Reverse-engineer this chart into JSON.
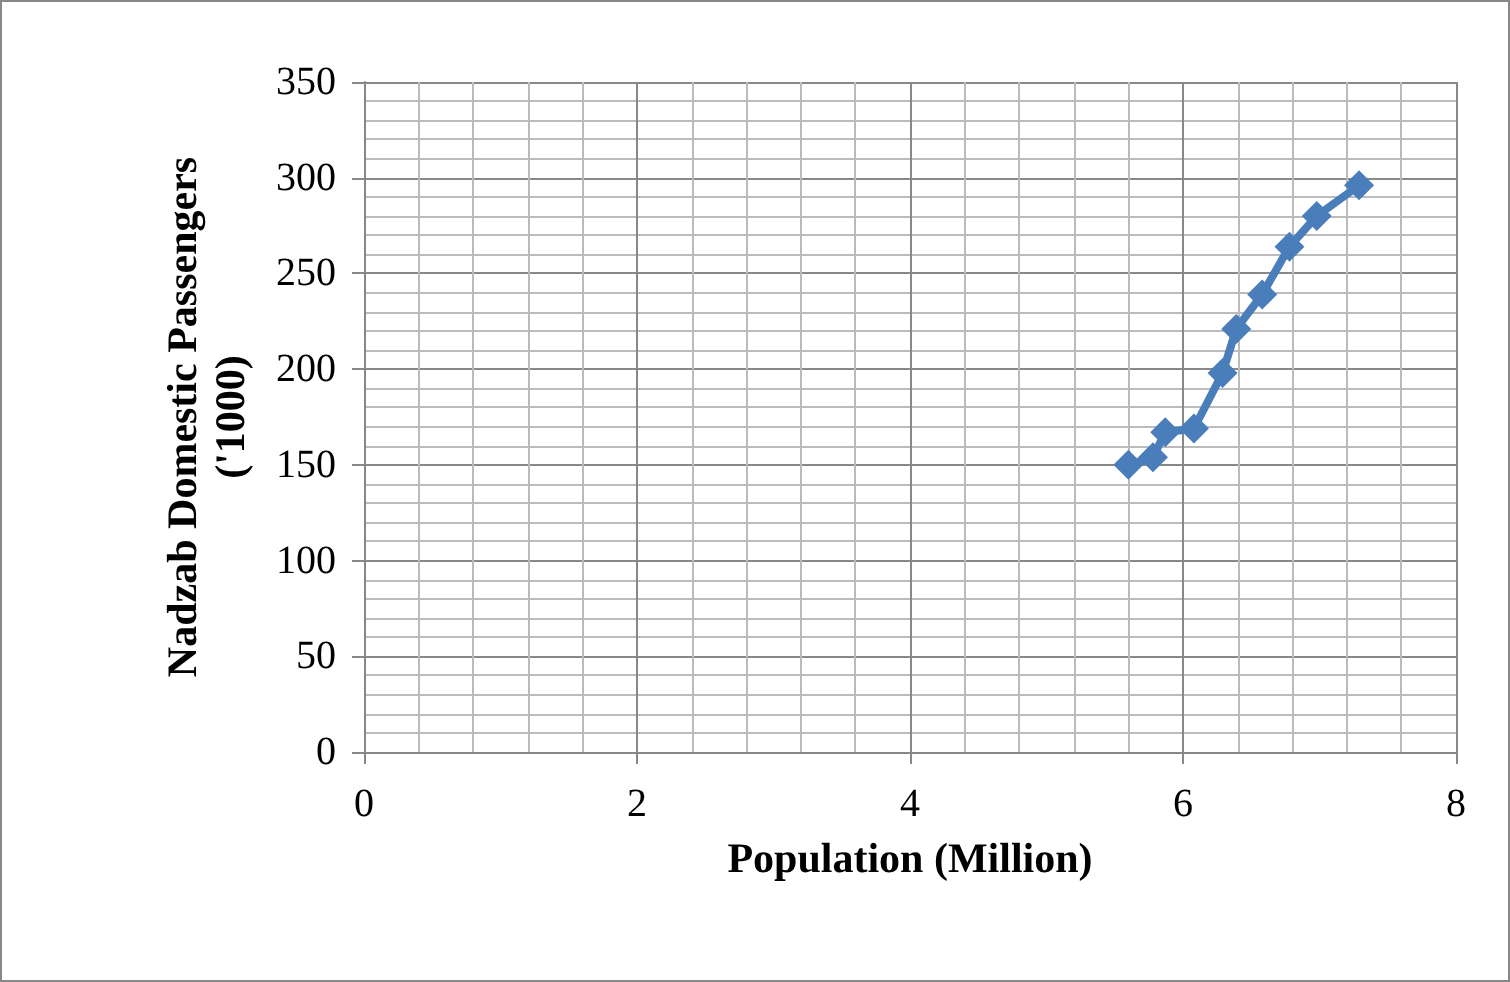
{
  "chart_data": {
    "type": "line",
    "xlabel": "Population (Million)",
    "ylabel": "Nadzab Domestic Passengers\n('1000)",
    "series": [
      {
        "color": "#4a7ebb",
        "x": [
          5.6,
          5.78,
          5.87,
          6.08,
          6.29,
          6.39,
          6.58,
          6.78,
          6.98,
          7.29
        ],
        "values": [
          150,
          154,
          167,
          169,
          198,
          221,
          239,
          264,
          280,
          296
        ]
      }
    ],
    "xlim": [
      0,
      8
    ],
    "xticks": [
      0,
      2,
      4,
      6,
      8
    ],
    "ylim": [
      0,
      350
    ],
    "yticks": [
      0,
      50,
      100,
      150,
      200,
      250,
      300,
      350
    ],
    "grid": true,
    "marker": "diamond",
    "line_style": "solid"
  }
}
